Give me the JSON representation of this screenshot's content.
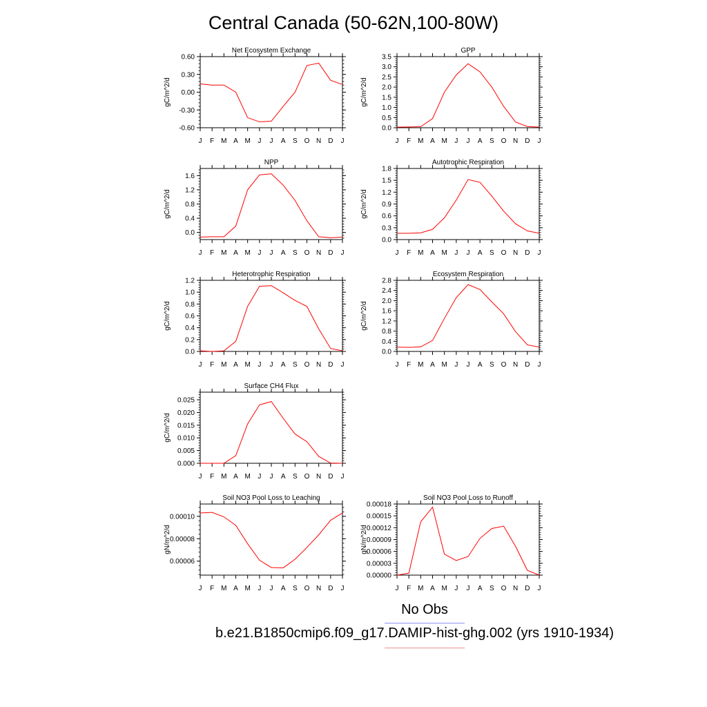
{
  "figure": {
    "title": "Central Canada (50-62N,100-80W)",
    "legend": [
      {
        "label": "No Obs",
        "color": "#8f8ff0"
      },
      {
        "label": "b.e21.B1850cmip6.f09_g17.DAMIP-hist-ghg.002 (yrs 1910-1934)",
        "color": "#f08f8f"
      }
    ],
    "series_color": "#ff0000"
  },
  "chart_data": [
    {
      "type": "line",
      "title": "Net Ecosystem Exchange",
      "ylabel": "gC/m^2/d",
      "categories": [
        "J",
        "F",
        "M",
        "A",
        "M",
        "J",
        "J",
        "A",
        "S",
        "O",
        "N",
        "D",
        "J"
      ],
      "values": [
        0.14,
        0.12,
        0.12,
        0.0,
        -0.43,
        -0.5,
        -0.49,
        -0.24,
        0.0,
        0.45,
        0.49,
        0.2,
        0.13
      ],
      "yticks": [
        "0.60",
        "0.30",
        "0.00",
        "-0.30",
        "-0.60"
      ],
      "ylim": [
        -0.6,
        0.6
      ]
    },
    {
      "type": "line",
      "title": "GPP",
      "ylabel": "gC/m^2/d",
      "categories": [
        "J",
        "F",
        "M",
        "A",
        "M",
        "J",
        "J",
        "A",
        "S",
        "O",
        "N",
        "D",
        "J"
      ],
      "values": [
        0.03,
        0.04,
        0.05,
        0.45,
        1.75,
        2.6,
        3.15,
        2.75,
        2.0,
        1.05,
        0.28,
        0.06,
        0.03
      ],
      "yticks": [
        "3.5",
        "3.0",
        "2.5",
        "2.0",
        "1.5",
        "1.0",
        "0.5",
        "0.0"
      ],
      "ylim": [
        0,
        3.5
      ]
    },
    {
      "type": "line",
      "title": "NPP",
      "ylabel": "gC/m^2/d",
      "categories": [
        "J",
        "F",
        "M",
        "A",
        "M",
        "J",
        "J",
        "A",
        "S",
        "O",
        "N",
        "D",
        "J"
      ],
      "values": [
        -0.13,
        -0.12,
        -0.12,
        0.18,
        1.2,
        1.62,
        1.65,
        1.33,
        0.9,
        0.33,
        -0.12,
        -0.15,
        -0.13
      ],
      "yticks": [
        "1.6",
        "1.2",
        "0.8",
        "0.4",
        "0.0"
      ],
      "ylim": [
        -0.2,
        1.8
      ]
    },
    {
      "type": "line",
      "title": "Autotrophic Respiration",
      "ylabel": "gC/m^2/d",
      "categories": [
        "J",
        "F",
        "M",
        "A",
        "M",
        "J",
        "J",
        "A",
        "S",
        "O",
        "N",
        "D",
        "J"
      ],
      "values": [
        0.16,
        0.16,
        0.17,
        0.26,
        0.55,
        1.0,
        1.52,
        1.45,
        1.1,
        0.72,
        0.4,
        0.22,
        0.16
      ],
      "yticks": [
        "1.8",
        "1.5",
        "1.2",
        "0.9",
        "0.6",
        "0.3",
        "0.0"
      ],
      "ylim": [
        0,
        1.8
      ]
    },
    {
      "type": "line",
      "title": "Heterotrophic Respiration",
      "ylabel": "gC/m^2/d",
      "categories": [
        "J",
        "F",
        "M",
        "A",
        "M",
        "J",
        "J",
        "A",
        "S",
        "O",
        "N",
        "D",
        "J"
      ],
      "values": [
        0.01,
        0.0,
        0.01,
        0.17,
        0.76,
        1.1,
        1.11,
        0.99,
        0.86,
        0.76,
        0.38,
        0.05,
        0.01
      ],
      "yticks": [
        "1.2",
        "1.0",
        "0.8",
        "0.6",
        "0.4",
        "0.2",
        "0.0"
      ],
      "ylim": [
        0,
        1.2
      ]
    },
    {
      "type": "line",
      "title": "Ecosystem Respiration",
      "ylabel": "gC/m^2/d",
      "categories": [
        "J",
        "F",
        "M",
        "A",
        "M",
        "J",
        "J",
        "A",
        "S",
        "O",
        "N",
        "D",
        "J"
      ],
      "values": [
        0.17,
        0.16,
        0.18,
        0.43,
        1.3,
        2.12,
        2.63,
        2.44,
        1.95,
        1.48,
        0.78,
        0.26,
        0.17
      ],
      "yticks": [
        "2.8",
        "2.4",
        "2.0",
        "1.6",
        "1.2",
        "0.8",
        "0.4",
        "0.0"
      ],
      "ylim": [
        0,
        2.8
      ]
    },
    {
      "type": "line",
      "title": "Surface CH4 Flux",
      "ylabel": "gC/m^2/d",
      "categories": [
        "J",
        "F",
        "M",
        "A",
        "M",
        "J",
        "J",
        "A",
        "S",
        "O",
        "N",
        "D",
        "J"
      ],
      "values": [
        0.0,
        0.0,
        0.0,
        0.003,
        0.0155,
        0.023,
        0.0243,
        0.0177,
        0.0115,
        0.0085,
        0.0027,
        0.0001,
        0.0
      ],
      "yticks": [
        "0.025",
        "0.020",
        "0.015",
        "0.010",
        "0.005",
        "0.000"
      ],
      "ylim": [
        0,
        0.028
      ]
    },
    {
      "type": "line",
      "title": "Soil NO3 Pool Loss to Leaching",
      "ylabel": "gN/m^2/d",
      "categories": [
        "J",
        "F",
        "M",
        "A",
        "M",
        "J",
        "J",
        "A",
        "S",
        "O",
        "N",
        "D",
        "J"
      ],
      "values": [
        0.000103,
        0.0001035,
        9.95e-05,
        9.2e-05,
        7.55e-05,
        6.08e-05,
        5.43e-05,
        5.4e-05,
        6.17e-05,
        7.22e-05,
        8.35e-05,
        9.65e-05,
        0.000103
      ],
      "yticks": [
        "0.00010",
        "0.00008",
        "0.00006"
      ],
      "ylim": [
        4.75e-05,
        0.000111
      ]
    },
    {
      "type": "line",
      "title": "Soil NO3 Pool Loss to Runoff",
      "ylabel": "gN/m^2/d",
      "categories": [
        "J",
        "F",
        "M",
        "A",
        "M",
        "J",
        "J",
        "A",
        "S",
        "O",
        "N",
        "D",
        "J"
      ],
      "values": [
        0.0,
        5e-06,
        0.000135,
        0.000172,
        5.3e-05,
        3.7e-05,
        4.7e-05,
        9.3e-05,
        0.000118,
        0.000124,
        7.3e-05,
        1.2e-05,
        0.0
      ],
      "yticks": [
        "0.00018",
        "0.00015",
        "0.00012",
        "0.00009",
        "0.00006",
        "0.00003",
        "0.00000"
      ],
      "ylim": [
        0,
        0.00018
      ]
    }
  ]
}
